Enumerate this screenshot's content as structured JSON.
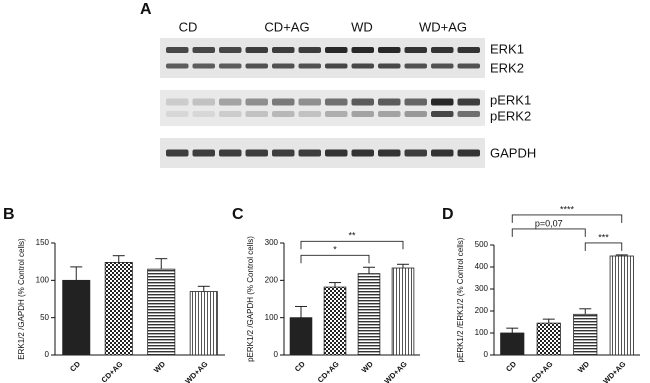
{
  "blot": {
    "panel": "A",
    "groups": [
      "CD",
      "CD+AG",
      "WD",
      "WD+AG"
    ],
    "bands": [
      "ERK1",
      "ERK2",
      "pERK1",
      "pERK2",
      "GAPDH"
    ]
  },
  "chart_data": [
    {
      "type": "bar",
      "panel": "B",
      "y_label": "ERK1/2 /GAPDH (% Control cells)",
      "categories": [
        "CD",
        "CD+AG",
        "WD",
        "WD+AG"
      ],
      "values": [
        100,
        124,
        115,
        85
      ],
      "errors": [
        18,
        9,
        14,
        7
      ],
      "patterns": [
        "solid",
        "checker",
        "hlines",
        "vlines"
      ],
      "color": "#222222",
      "ylim": [
        0,
        150
      ],
      "yticks": [
        0,
        50,
        100,
        150
      ],
      "annotations": []
    },
    {
      "type": "bar",
      "panel": "C",
      "y_label": "pERK1/2 /GAPDH (% Control cells)",
      "categories": [
        "CD",
        "CD+AG",
        "WD",
        "WD+AG"
      ],
      "values": [
        100,
        182,
        218,
        233
      ],
      "errors": [
        30,
        12,
        17,
        10
      ],
      "patterns": [
        "solid",
        "checker",
        "hlines",
        "vlines"
      ],
      "color": "#222222",
      "ylim": [
        0,
        300
      ],
      "yticks": [
        0,
        100,
        200,
        300
      ],
      "annotations": [
        {
          "groups": [
            "CD",
            "WD"
          ],
          "label": "*"
        },
        {
          "groups": [
            "CD",
            "WD+AG"
          ],
          "label": "**"
        }
      ]
    },
    {
      "type": "bar",
      "panel": "D",
      "y_label": "pERK1/2 /ERK1/2 (% Control cells)",
      "categories": [
        "CD",
        "CD+AG",
        "WD",
        "WD+AG"
      ],
      "values": [
        100,
        145,
        185,
        450
      ],
      "errors": [
        22,
        18,
        25,
        5
      ],
      "patterns": [
        "solid",
        "checker",
        "hlines",
        "vlines"
      ],
      "color": "#222222",
      "ylim": [
        0,
        500
      ],
      "yticks": [
        0,
        100,
        200,
        300,
        400,
        500
      ],
      "annotations": [
        {
          "groups": [
            "WD",
            "WD+AG"
          ],
          "label": "***"
        },
        {
          "groups": [
            "CD",
            "WD"
          ],
          "label": "p=0,07"
        },
        {
          "groups": [
            "CD",
            "WD+AG"
          ],
          "label": "****"
        }
      ]
    }
  ]
}
